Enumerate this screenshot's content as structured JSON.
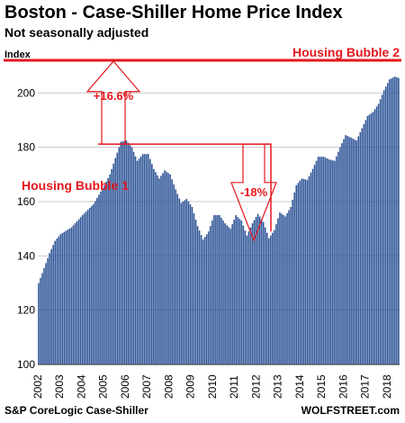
{
  "title": "Boston - Case-Shiller Home Price Index",
  "subtitle": "Not seasonally adjusted",
  "source": "S&P CoreLogic Case-Shiller",
  "brand": "WOLFSTREET.com",
  "colors": {
    "bar": "#2f5597",
    "annotation": "#e4171d",
    "grid": "#c8c8c8"
  },
  "chart_data": {
    "type": "bar",
    "ylabel": "Index",
    "ylim": [
      100,
      215
    ],
    "yticks": [
      100,
      120,
      140,
      160,
      180,
      200
    ],
    "xlabels": [
      "2002",
      "2003",
      "2004",
      "2005",
      "2006",
      "2007",
      "2008",
      "2009",
      "2010",
      "2011",
      "2012",
      "2013",
      "2014",
      "2015",
      "2016",
      "2017",
      "2018"
    ],
    "grid": "horizontal",
    "anchors": [
      [
        2002.0,
        130.0
      ],
      [
        2002.25,
        135.5
      ],
      [
        2002.5,
        141.0
      ],
      [
        2002.75,
        145.5
      ],
      [
        2003.0,
        148.0
      ],
      [
        2003.5,
        150.5
      ],
      [
        2004.0,
        155.0
      ],
      [
        2004.5,
        159.0
      ],
      [
        2005.0,
        166.0
      ],
      [
        2005.25,
        170.0
      ],
      [
        2005.5,
        176.0
      ],
      [
        2005.75,
        182.0
      ],
      [
        2006.0,
        182.5
      ],
      [
        2006.25,
        180.0
      ],
      [
        2006.5,
        175.0
      ],
      [
        2006.75,
        177.5
      ],
      [
        2007.0,
        177.5
      ],
      [
        2007.25,
        172.0
      ],
      [
        2007.5,
        168.5
      ],
      [
        2007.75,
        171.5
      ],
      [
        2008.0,
        170.0
      ],
      [
        2008.25,
        164.5
      ],
      [
        2008.5,
        159.5
      ],
      [
        2008.75,
        161.0
      ],
      [
        2009.0,
        158.0
      ],
      [
        2009.25,
        151.0
      ],
      [
        2009.5,
        146.0
      ],
      [
        2009.75,
        149.0
      ],
      [
        2010.0,
        155.0
      ],
      [
        2010.25,
        155.0
      ],
      [
        2010.5,
        152.0
      ],
      [
        2010.75,
        150.0
      ],
      [
        2011.0,
        155.0
      ],
      [
        2011.25,
        153.0
      ],
      [
        2011.5,
        147.5
      ],
      [
        2011.75,
        152.0
      ],
      [
        2012.0,
        155.5
      ],
      [
        2012.25,
        152.5
      ],
      [
        2012.5,
        146.5
      ],
      [
        2012.75,
        149.5
      ],
      [
        2013.0,
        156.0
      ],
      [
        2013.25,
        154.5
      ],
      [
        2013.5,
        158.0
      ],
      [
        2013.75,
        166.0
      ],
      [
        2014.0,
        168.5
      ],
      [
        2014.25,
        168.0
      ],
      [
        2014.5,
        172.0
      ],
      [
        2014.75,
        176.5
      ],
      [
        2015.0,
        176.5
      ],
      [
        2015.25,
        175.5
      ],
      [
        2015.5,
        175.0
      ],
      [
        2015.75,
        180.0
      ],
      [
        2016.0,
        184.5
      ],
      [
        2016.25,
        183.5
      ],
      [
        2016.5,
        182.5
      ],
      [
        2016.75,
        187.0
      ],
      [
        2017.0,
        191.5
      ],
      [
        2017.25,
        193.0
      ],
      [
        2017.5,
        196.0
      ],
      [
        2017.75,
        201.0
      ],
      [
        2018.0,
        205.0
      ],
      [
        2018.25,
        206.0
      ],
      [
        2018.42,
        205.5
      ],
      [
        2018.5,
        212.0
      ]
    ],
    "reference_line": {
      "value": 212,
      "label": "Housing Bubble 2"
    },
    "bubble1_label": "Housing Bubble 1",
    "rise_label": "+16.6%",
    "drop_label": "-18%"
  }
}
